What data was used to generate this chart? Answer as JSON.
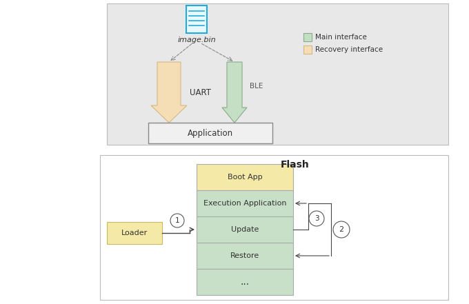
{
  "bg_color": "#ffffff",
  "top_panel_bg": "#e8e8e8",
  "uart_arrow_color": "#f5ddb5",
  "uart_arrow_edge": "#d4b882",
  "ble_arrow_color": "#c5dfc5",
  "ble_arrow_edge": "#88aa88",
  "app_box_color": "#f0f0f0",
  "image_bin_text": "image.bin",
  "uart_label": "UART",
  "ble_label": "BLE",
  "app_label": "Application",
  "legend_main": "Main interface",
  "legend_recovery": "Recovery interface",
  "legend_main_color": "#c5dfc5",
  "legend_main_edge": "#88aa88",
  "legend_recovery_color": "#f5ddb5",
  "legend_recovery_edge": "#d4b882",
  "flash_title": "Flash",
  "boot_app_color": "#f5e9a8",
  "boot_app_edge": "#c8b860",
  "exec_app_color": "#c8dfc8",
  "exec_app_edge": "#88aa88",
  "update_color": "#c8dfc8",
  "update_edge": "#88aa88",
  "restore_color": "#c8dfc8",
  "restore_edge": "#88aa88",
  "dots_color": "#c8dfc8",
  "dots_edge": "#88aa88",
  "loader_box_color": "#f5e9a8",
  "loader_box_edge": "#c8b860",
  "loader_label": "Loader",
  "flash_blocks": [
    "Boot App",
    "Execution Application",
    "Update",
    "Restore",
    "..."
  ],
  "circle_color": "#ffffff",
  "circle_edge": "#555555",
  "arrow_color": "#444444"
}
